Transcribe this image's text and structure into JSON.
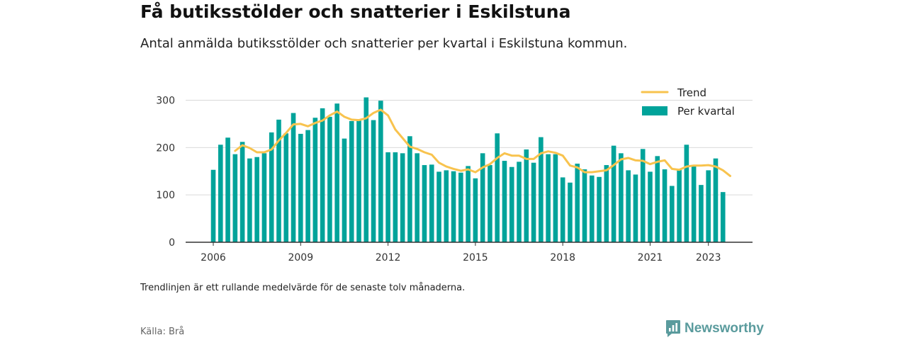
{
  "header": {
    "title": "Få butiksstölder och snatterier i Eskilstuna",
    "subtitle": "Antal anmälda butiksstölder och snatterier per kvartal i Eskilstuna kommun."
  },
  "footer": {
    "note": "Trendlinjen är ett rullande medelvärde för de senaste tolv månaderna.",
    "source": "Källa: Brå",
    "brand": "Newsworthy",
    "brand_icon": "newsworthy-logo-icon"
  },
  "colors": {
    "bars": "#00a39a",
    "trend": "#f8c34e",
    "grid": "#d9d9d9",
    "axis": "#333333",
    "brand": "#5a9b9d"
  },
  "chart_data": {
    "type": "bar",
    "x": [
      "2006 Q1",
      "2006 Q2",
      "2006 Q3",
      "2006 Q4",
      "2007 Q1",
      "2007 Q2",
      "2007 Q3",
      "2007 Q4",
      "2008 Q1",
      "2008 Q2",
      "2008 Q3",
      "2008 Q4",
      "2009 Q1",
      "2009 Q2",
      "2009 Q3",
      "2009 Q4",
      "2010 Q1",
      "2010 Q2",
      "2010 Q3",
      "2010 Q4",
      "2011 Q1",
      "2011 Q2",
      "2011 Q3",
      "2011 Q4",
      "2012 Q1",
      "2012 Q2",
      "2012 Q3",
      "2012 Q4",
      "2013 Q1",
      "2013 Q2",
      "2013 Q3",
      "2013 Q4",
      "2014 Q1",
      "2014 Q2",
      "2014 Q3",
      "2014 Q4",
      "2015 Q1",
      "2015 Q2",
      "2015 Q3",
      "2015 Q4",
      "2016 Q1",
      "2016 Q2",
      "2016 Q3",
      "2016 Q4",
      "2017 Q1",
      "2017 Q2",
      "2017 Q3",
      "2017 Q4",
      "2018 Q1",
      "2018 Q2",
      "2018 Q3",
      "2018 Q4",
      "2019 Q1",
      "2019 Q2",
      "2019 Q3",
      "2019 Q4",
      "2020 Q1",
      "2020 Q2",
      "2020 Q3",
      "2020 Q4",
      "2021 Q1",
      "2021 Q2",
      "2021 Q3",
      "2021 Q4",
      "2022 Q1",
      "2022 Q2",
      "2022 Q3",
      "2022 Q4",
      "2023 Q1",
      "2023 Q2",
      "2023 Q3",
      "2023 Q4"
    ],
    "series": [
      {
        "name": "Per kvartal",
        "values": [
          153,
          206,
          221,
          186,
          212,
          177,
          180,
          188,
          232,
          259,
          230,
          273,
          229,
          237,
          263,
          283,
          265,
          293,
          219,
          256,
          257,
          306,
          258,
          299,
          190,
          190,
          188,
          224,
          188,
          163,
          164,
          149,
          152,
          150,
          147,
          161,
          135,
          188,
          163,
          230,
          172,
          159,
          170,
          196,
          168,
          222,
          186,
          186,
          137,
          126,
          166,
          154,
          141,
          138,
          163,
          204,
          188,
          152,
          143,
          197,
          149,
          182,
          154,
          119,
          155,
          206,
          162,
          121,
          152,
          177,
          106,
          null
        ]
      },
      {
        "name": "Trend",
        "values": [
          null,
          null,
          null,
          193,
          205,
          199,
          190,
          190,
          196,
          215,
          231,
          249,
          250,
          245,
          252,
          257,
          268,
          276,
          265,
          259,
          258,
          262,
          273,
          280,
          268,
          238,
          220,
          202,
          197,
          190,
          185,
          168,
          160,
          155,
          151,
          154,
          148,
          158,
          165,
          178,
          188,
          183,
          183,
          176,
          176,
          188,
          192,
          189,
          183,
          162,
          158,
          148,
          148,
          150,
          152,
          163,
          175,
          178,
          173,
          172,
          165,
          170,
          173,
          155,
          153,
          160,
          162,
          162,
          163,
          160,
          152,
          140
        ]
      }
    ],
    "xticks": [
      "2006",
      "2009",
      "2012",
      "2015",
      "2018",
      "2021",
      "2023"
    ],
    "yticks": [
      0,
      100,
      200,
      300
    ],
    "ylim": [
      0,
      315
    ],
    "legend": [
      "Trend",
      "Per kvartal"
    ],
    "legend_position": "top-right",
    "grid": true,
    "xlabel": "",
    "ylabel": ""
  }
}
